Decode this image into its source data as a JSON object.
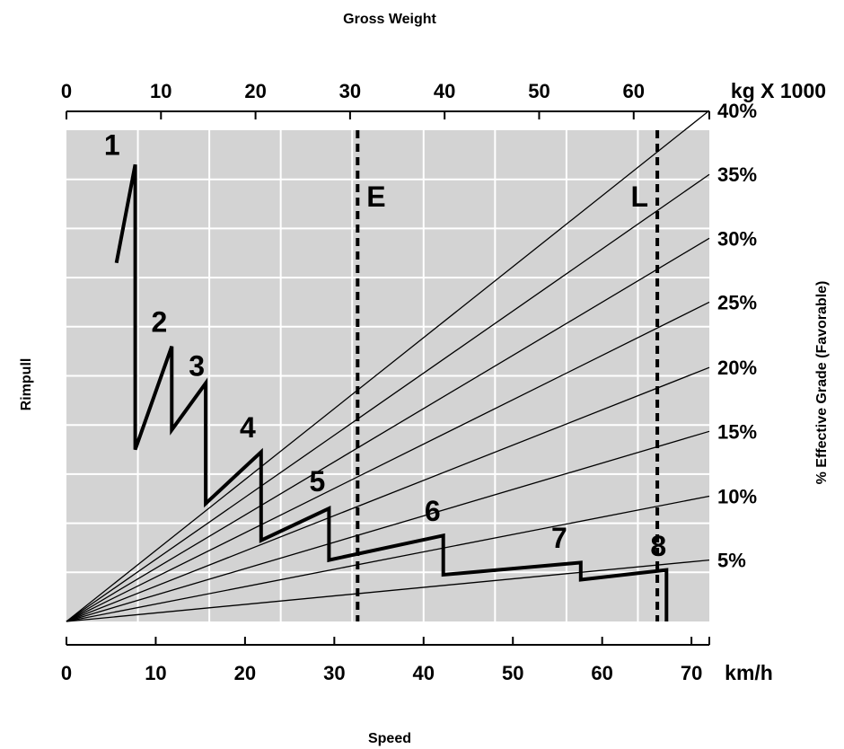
{
  "chart_data": {
    "type": "line",
    "title": "Gross Weight",
    "xlabel": "Speed",
    "ylabel": "Rimpull",
    "right_label": "% Effective Grade (Favorable)",
    "x_axis": {
      "unit": "km/h",
      "range": [
        0,
        72
      ],
      "ticks": [
        "0",
        "10",
        "20",
        "30",
        "40",
        "50",
        "60",
        "70"
      ]
    },
    "top_axis": {
      "unit": "kg X 1000",
      "range": [
        0,
        68
      ],
      "ticks": [
        "0",
        "10",
        "20",
        "30",
        "40",
        "50",
        "60"
      ]
    },
    "y_range": [
      0,
      10
    ],
    "grid": true,
    "grade_lines": [
      {
        "label": "5%",
        "end_y": 1.25
      },
      {
        "label": "10%",
        "end_y": 2.55
      },
      {
        "label": "15%",
        "end_y": 3.87
      },
      {
        "label": "20%",
        "end_y": 5.17
      },
      {
        "label": "25%",
        "end_y": 6.5
      },
      {
        "label": "30%",
        "end_y": 7.8
      },
      {
        "label": "35%",
        "end_y": 9.1
      },
      {
        "label": "40%",
        "end_y": 10.4
      }
    ],
    "markers": [
      {
        "label": "E",
        "top_x": 30.8
      },
      {
        "label": "L",
        "top_x": 62.5
      }
    ],
    "retarder_curve": [
      [
        5.6,
        7.3
      ],
      [
        7.7,
        9.3
      ],
      [
        7.7,
        3.5
      ],
      [
        11.8,
        5.6
      ],
      [
        11.8,
        3.9
      ],
      [
        15.6,
        4.85
      ],
      [
        15.6,
        2.4
      ],
      [
        21.8,
        3.45
      ],
      [
        21.8,
        1.65
      ],
      [
        29.4,
        2.3
      ],
      [
        29.4,
        1.25
      ],
      [
        42.2,
        1.75
      ],
      [
        42.2,
        0.95
      ],
      [
        57.6,
        1.2
      ],
      [
        57.6,
        0.85
      ],
      [
        67.2,
        1.05
      ],
      [
        67.2,
        0
      ]
    ],
    "gear_labels": [
      {
        "label": "1",
        "x": 5.1,
        "y": 9.5
      },
      {
        "label": "2",
        "x": 10.4,
        "y": 5.9
      },
      {
        "label": "3",
        "x": 14.6,
        "y": 5.0
      },
      {
        "label": "4",
        "x": 20.3,
        "y": 3.75
      },
      {
        "label": "5",
        "x": 28.1,
        "y": 2.65
      },
      {
        "label": "6",
        "x": 41.0,
        "y": 2.05
      },
      {
        "label": "7",
        "x": 55.2,
        "y": 1.5
      },
      {
        "label": "8",
        "x": 66.3,
        "y": 1.33
      }
    ]
  }
}
